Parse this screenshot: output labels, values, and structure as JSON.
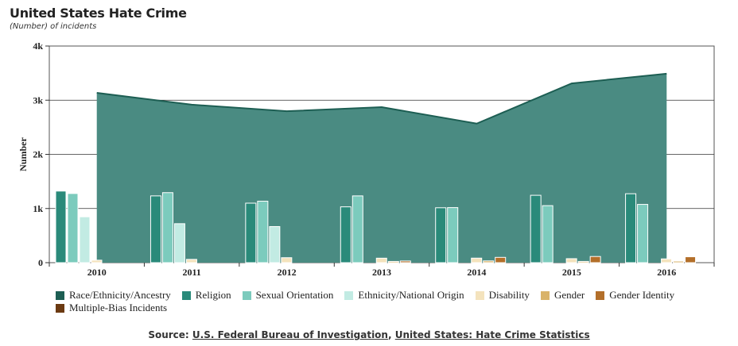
{
  "header": {
    "title": "United States Hate Crime",
    "subtitle": "(Number) of incidents"
  },
  "source": {
    "prefix": "Source:",
    "link1": "U.S. Federal Bureau of Investigation",
    "separator": ",",
    "link2": "United States: Hate Crime Statistics"
  },
  "chart_data": {
    "type": "bar",
    "title": "United States Hate Crime",
    "subtitle": "(Number) of incidents",
    "ylabel": "Number",
    "xlabel": "",
    "ylim": [
      0,
      4000
    ],
    "yticks": [
      0,
      1000,
      2000,
      3000,
      4000
    ],
    "ytick_labels": [
      "0",
      "1k",
      "2k",
      "3k",
      "4k"
    ],
    "grid": true,
    "legend_position": "bottom",
    "categories": [
      "2010",
      "2011",
      "2012",
      "2013",
      "2014",
      "2015",
      "2016"
    ],
    "area_series": {
      "name": "Race/Ethnicity/Ancestry",
      "color": "#1d5e53",
      "values": [
        3135,
        2917,
        2797,
        2871,
        2568,
        3310,
        3489
      ]
    },
    "series": [
      {
        "name": "Religion",
        "color": "#2a8a7a",
        "values": [
          1322,
          1233,
          1099,
          1031,
          1014,
          1244,
          1273
        ]
      },
      {
        "name": "Sexual Orientation",
        "color": "#7ccbbd",
        "values": [
          1277,
          1293,
          1135,
          1233,
          1017,
          1053,
          1076
        ]
      },
      {
        "name": "Ethnicity/National Origin",
        "color": "#c2ebe3",
        "values": [
          847,
          720,
          667,
          0,
          0,
          0,
          0
        ]
      },
      {
        "name": "Disability",
        "color": "#f4e3bd",
        "values": [
          46,
          61,
          92,
          83,
          84,
          74,
          70
        ]
      },
      {
        "name": "Gender",
        "color": "#d9b36a",
        "values": [
          0,
          0,
          0,
          23,
          33,
          23,
          29
        ]
      },
      {
        "name": "Gender Identity",
        "color": "#b36f2a",
        "values": [
          0,
          0,
          0,
          31,
          98,
          114,
          109
        ]
      },
      {
        "name": "Multiple-Bias Incidents",
        "color": "#6b3a12",
        "values": [
          0,
          0,
          0,
          0,
          0,
          0,
          0
        ]
      }
    ],
    "legend": [
      {
        "name": "Race/Ethnicity/Ancestry",
        "color": "#1d5e53"
      },
      {
        "name": "Religion",
        "color": "#2a8a7a"
      },
      {
        "name": "Sexual Orientation",
        "color": "#7ccbbd"
      },
      {
        "name": "Ethnicity/National Origin",
        "color": "#c2ebe3"
      },
      {
        "name": "Disability",
        "color": "#f4e3bd"
      },
      {
        "name": "Gender",
        "color": "#d9b36a"
      },
      {
        "name": "Gender Identity",
        "color": "#b36f2a"
      },
      {
        "name": "Multiple-Bias Incidents",
        "color": "#6b3a12"
      }
    ]
  }
}
